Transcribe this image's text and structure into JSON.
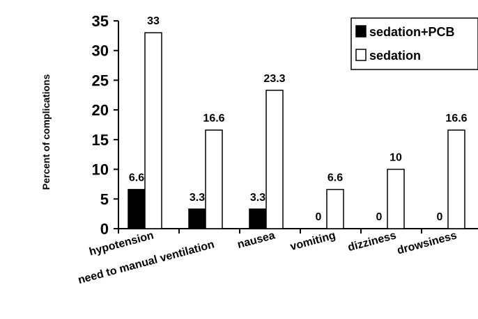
{
  "chart_data": {
    "type": "bar",
    "title": "",
    "xlabel": "",
    "ylabel": "Percent of complications",
    "ylim": [
      0,
      35
    ],
    "yticks": [
      0,
      5,
      10,
      15,
      20,
      25,
      30,
      35
    ],
    "grid": false,
    "legend_position": "top-right",
    "categories": [
      "hypotension",
      "need to manual ventilation",
      "nausea",
      "vomiting",
      "dizziness",
      "drowsiness"
    ],
    "series": [
      {
        "name": "sedation+PCB",
        "color": "#000000",
        "values": [
          6.6,
          3.3,
          3.3,
          0,
          0,
          0
        ],
        "labels": [
          "6.6",
          "3.3",
          "3.3",
          "0",
          "0",
          "0"
        ]
      },
      {
        "name": "sedation",
        "color": "#ffffff",
        "values": [
          33,
          16.6,
          23.3,
          6.6,
          10,
          16.6
        ],
        "labels": [
          "33",
          "16.6",
          "23.3",
          "6.6",
          "10",
          "16.6"
        ]
      }
    ]
  }
}
